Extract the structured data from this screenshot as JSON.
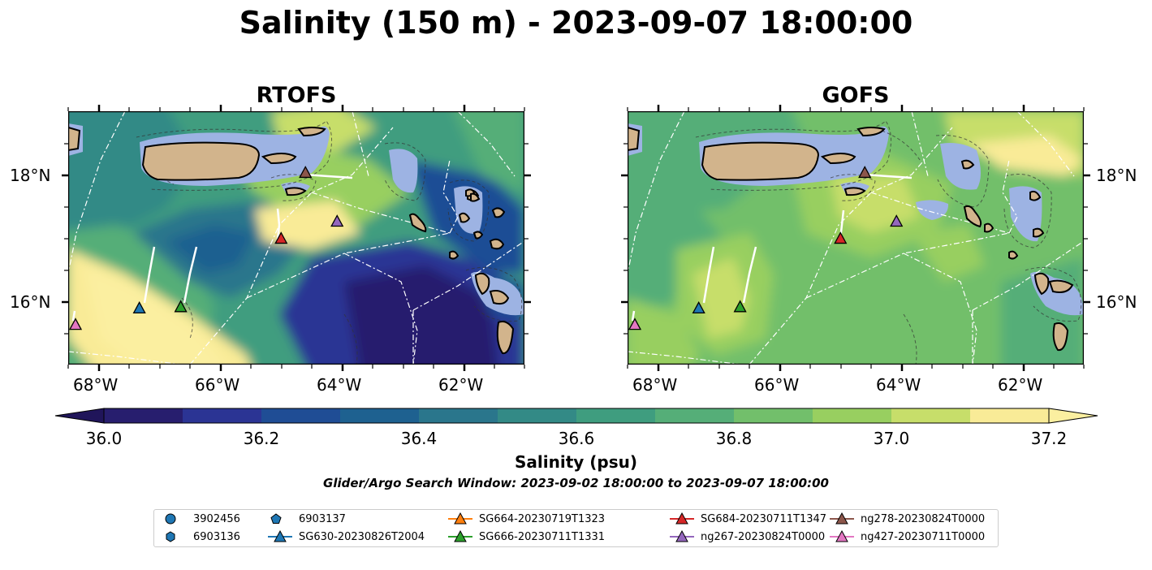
{
  "title": "Salinity (150 m) - 2023-09-07 18:00:00",
  "panels": [
    {
      "name": "RTOFS",
      "lat_labels": [
        "18°N",
        "16°N"
      ],
      "lon_labels": [
        "68°W",
        "66°W",
        "64°W",
        "62°W"
      ]
    },
    {
      "name": "GOFS",
      "lat_labels": [
        "18°N",
        "16°N"
      ],
      "lon_labels": [
        "68°W",
        "66°W",
        "64°W",
        "62°W"
      ]
    }
  ],
  "colorbar": {
    "label": "Salinity (psu)",
    "ticks": [
      "36.0",
      "36.2",
      "36.4",
      "36.6",
      "36.8",
      "37.0",
      "37.2"
    ],
    "colors": [
      "#271e6e",
      "#2b3494",
      "#1f4d95",
      "#1e6190",
      "#2a768c",
      "#338a86",
      "#3f9d7f",
      "#55ae78",
      "#72bf6b",
      "#98cf60",
      "#c7de6a",
      "#f9eb97"
    ],
    "under_color": "#20155a",
    "over_color": "#fbefa0"
  },
  "search_window": "Glider/Argo Search Window: 2023-09-02 18:00:00 to 2023-09-07 18:00:00",
  "legend": [
    {
      "label": "3902456",
      "marker": "circle",
      "color": "#1f77b4"
    },
    {
      "label": "6903136",
      "marker": "hexagon",
      "color": "#1f77b4"
    },
    {
      "label": "6903137",
      "marker": "pentagon",
      "color": "#1f77b4"
    },
    {
      "label": "SG630-20230826T2004",
      "marker": "triangle-line",
      "color": "#1f77b4"
    },
    {
      "label": "SG664-20230719T1323",
      "marker": "triangle-line",
      "color": "#ff7f0e"
    },
    {
      "label": "SG666-20230711T1331",
      "marker": "triangle-line",
      "color": "#2ca02c"
    },
    {
      "label": "SG684-20230711T1347",
      "marker": "triangle-line",
      "color": "#d62728"
    },
    {
      "label": "ng267-20230824T0000",
      "marker": "triangle-line",
      "color": "#9467bd"
    },
    {
      "label": "ng278-20230824T0000",
      "marker": "triangle-line",
      "color": "#8c564b"
    },
    {
      "label": "ng427-20230711T0000",
      "marker": "triangle-line",
      "color": "#e377c2"
    }
  ],
  "gliders": [
    {
      "id": "SG630-20230826T2004",
      "color": "#1f77b4",
      "lon": -67.33,
      "lat": 15.88
    },
    {
      "id": "SG666-20230711T1331",
      "color": "#2ca02c",
      "lon": -66.65,
      "lat": 15.9
    },
    {
      "id": "SG684-20230711T1347",
      "color": "#d62728",
      "lon": -65.0,
      "lat": 16.98
    },
    {
      "id": "ng267-20230824T0000",
      "color": "#9467bd",
      "lon": -64.08,
      "lat": 17.25
    },
    {
      "id": "ng278-20230824T0000",
      "color": "#8c564b",
      "lon": -64.6,
      "lat": 18.02
    },
    {
      "id": "ng427-20230711T0000",
      "color": "#e377c2",
      "lon": -68.38,
      "lat": 15.62
    }
  ]
}
